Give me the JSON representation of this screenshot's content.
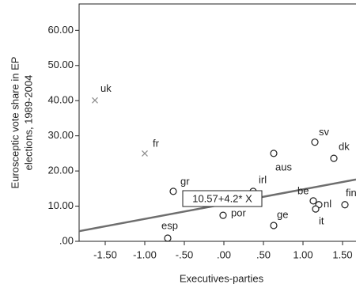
{
  "chart_data": {
    "type": "scatter",
    "x_label": "Executives-parties",
    "y_label": [
      "Eurosceptic vote share in EP",
      "elections, 1989-2004"
    ],
    "xlim": [
      -1.83,
      1.67
    ],
    "ylim": [
      0,
      67.5
    ],
    "xticks": [
      {
        "value": -1.5,
        "label": "-1.50"
      },
      {
        "value": -1.0,
        "label": "-1.00"
      },
      {
        "value": -0.5,
        "label": "-.50"
      },
      {
        "value": 0,
        "label": ".00"
      },
      {
        "value": 0.5,
        "label": ".50"
      },
      {
        "value": 1.0,
        "label": "1.00"
      },
      {
        "value": 1.5,
        "label": "1.50"
      }
    ],
    "yticks": [
      {
        "value": 0,
        "label": ".00"
      },
      {
        "value": 10,
        "label": "10.00"
      },
      {
        "value": 20,
        "label": "20.00"
      },
      {
        "value": 30,
        "label": "30.00"
      },
      {
        "value": 40,
        "label": "40.00"
      },
      {
        "value": 50,
        "label": "50.00"
      },
      {
        "value": 60,
        "label": "60.00"
      }
    ],
    "points": [
      {
        "label": "uk",
        "x": -1.63,
        "y": 40.1,
        "marker": "x"
      },
      {
        "label": "fr",
        "x": -1.0,
        "y": 25.0,
        "marker": "x"
      },
      {
        "label": "gr",
        "x": -0.64,
        "y": 14.2,
        "marker": "o"
      },
      {
        "label": "esp",
        "x": -0.71,
        "y": 0.9,
        "marker": "o"
      },
      {
        "label": "irl",
        "x": 0.37,
        "y": 14.2,
        "marker": "o"
      },
      {
        "label": "por",
        "x": -0.01,
        "y": 7.4,
        "marker": "o"
      },
      {
        "label": "aus",
        "x": 0.63,
        "y": 25.0,
        "marker": "o"
      },
      {
        "label": "sv",
        "x": 1.15,
        "y": 28.2,
        "marker": "o"
      },
      {
        "label": "dk",
        "x": 1.39,
        "y": 23.6,
        "marker": "o"
      },
      {
        "label": "be",
        "x": 1.13,
        "y": 11.5,
        "marker": "o"
      },
      {
        "label": "nl",
        "x": 1.2,
        "y": 10.4,
        "marker": "o"
      },
      {
        "label": "it",
        "x": 1.16,
        "y": 9.2,
        "marker": "o"
      },
      {
        "label": "fin",
        "x": 1.53,
        "y": 10.4,
        "marker": "o"
      },
      {
        "label": "ge",
        "x": 0.63,
        "y": 4.5,
        "marker": "o"
      }
    ],
    "fit_line": {
      "intercept": 10.57,
      "slope": 4.2,
      "label": "10.57+4.2* X",
      "color": "#6e6e6e"
    },
    "marker_colors": {
      "x": "#8c8c8c",
      "o": "#222222"
    }
  }
}
